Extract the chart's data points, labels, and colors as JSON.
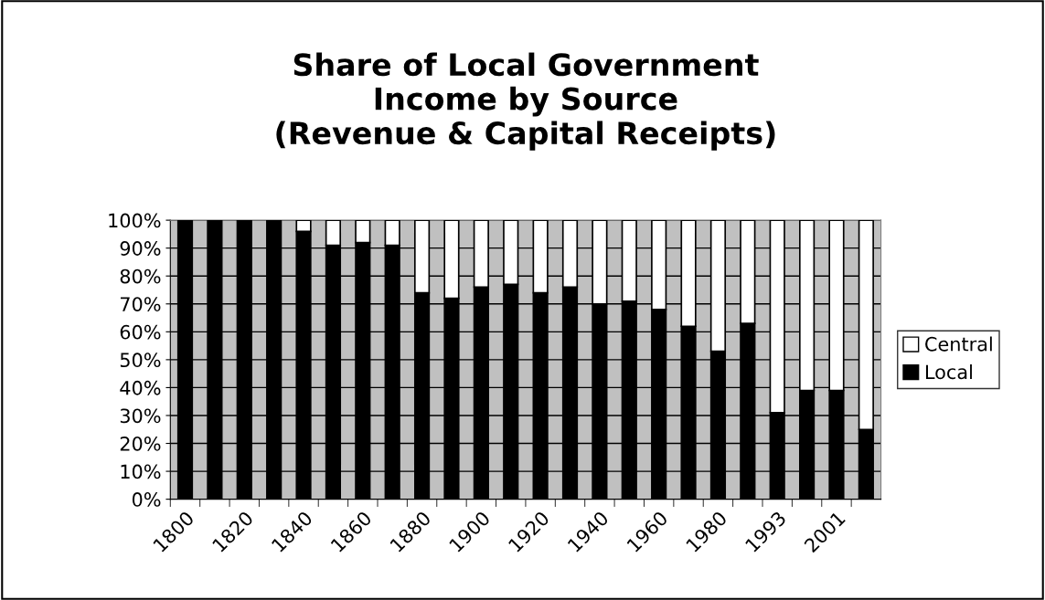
{
  "chart_data": {
    "type": "bar",
    "stacked": true,
    "title": "Share of Local Government\nIncome by Source\n(Revenue & Capital Receipts)",
    "categories": [
      "1800",
      null,
      "1820",
      null,
      "1840",
      null,
      "1860",
      null,
      "1880",
      null,
      "1900",
      null,
      "1920",
      null,
      "1940",
      null,
      "1960",
      null,
      "1980",
      null,
      "1993",
      null,
      "2001",
      null
    ],
    "series": [
      {
        "name": "Local",
        "color": "#000000",
        "values": [
          100,
          100,
          100,
          100,
          96,
          91,
          92,
          91,
          74,
          72,
          76,
          77,
          74,
          76,
          70,
          71,
          68,
          62,
          53,
          63,
          31,
          39,
          39,
          25
        ]
      },
      {
        "name": "Central",
        "color": "#ffffff",
        "values": [
          null,
          null,
          null,
          null,
          4,
          9,
          8,
          9,
          26,
          28,
          24,
          23,
          26,
          24,
          30,
          29,
          32,
          38,
          47,
          37,
          69,
          61,
          61,
          75
        ]
      }
    ],
    "ylim": [
      0,
      100
    ],
    "yticks": [
      {
        "value": 0,
        "label": "0%"
      },
      {
        "value": 10,
        "label": "10%"
      },
      {
        "value": 20,
        "label": "20%"
      },
      {
        "value": 30,
        "label": "30%"
      },
      {
        "value": 40,
        "label": "40%"
      },
      {
        "value": 50,
        "label": "50%"
      },
      {
        "value": 60,
        "label": "60%"
      },
      {
        "value": 70,
        "label": "70%"
      },
      {
        "value": 80,
        "label": "80%"
      },
      {
        "value": 90,
        "label": "90%"
      },
      {
        "value": 100,
        "label": "100%"
      }
    ],
    "grid": "y",
    "legend": "right"
  }
}
